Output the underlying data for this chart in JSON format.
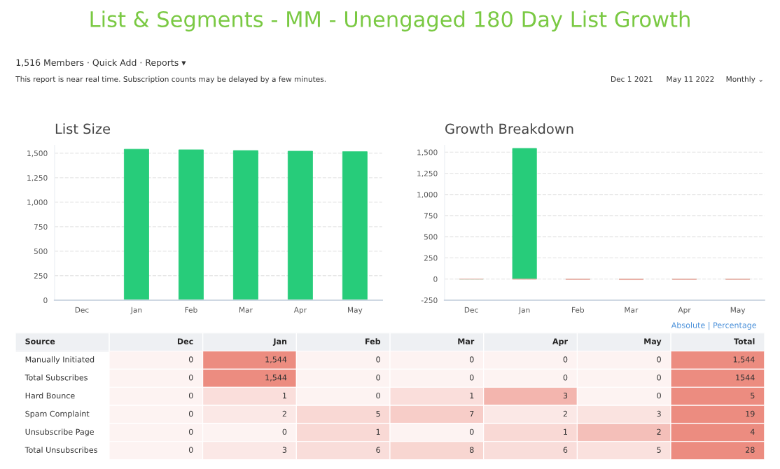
{
  "chart_data": [
    {
      "type": "bar",
      "title": "List Size",
      "categories": [
        "Dec",
        "Jan",
        "Feb",
        "Mar",
        "Apr",
        "May"
      ],
      "values": [
        0,
        1541,
        1535,
        1527,
        1521,
        1516
      ],
      "color": "#27cc7a",
      "ylim": [
        0,
        1580
      ],
      "yticks": [
        0,
        250,
        500,
        750,
        {
          "value": 1000,
          "label": "1,000"
        },
        {
          "value": 1250,
          "label": "1,250"
        },
        {
          "value": 1500,
          "label": "1,500"
        }
      ],
      "grid": "y",
      "annotations": [
        "List & Segments - MM - Unengaged 180 Day List Growth",
        "1,516 Members · Quick Add · Reports ▾",
        "This report is near real time. Subscription counts may be delayed by a few minutes.",
        "Dec 1 2021",
        "May 11 2022",
        "Monthly ⌄"
      ]
    },
    {
      "type": "bar",
      "title": "Growth Breakdown",
      "categories": [
        "Dec",
        "Jan",
        "Feb",
        "Mar",
        "Apr",
        "May"
      ],
      "stacked": true,
      "series": [
        {
          "color": "#27cc7a",
          "values": [
            0,
            1544,
            0,
            0,
            0,
            0
          ]
        },
        {
          "color": "#f2a9a3",
          "values": [
            0,
            -3,
            -6,
            -8,
            -6,
            -5
          ]
        }
      ],
      "ylim": [
        -250,
        1580
      ],
      "yticks": [
        -250,
        0,
        250,
        500,
        750,
        {
          "value": 1000,
          "label": "1,000"
        },
        {
          "value": 1250,
          "label": "1,250"
        },
        {
          "value": 1500,
          "label": "1,500"
        }
      ],
      "grid": "y"
    },
    {
      "type": "heatmap",
      "ylabel": "Source",
      "categories": [
        "Dec",
        "Jan",
        "Feb",
        "Mar",
        "Apr",
        "May",
        "Total"
      ],
      "y_categories": [
        "Manually Initiated",
        "Total Subscribes",
        "Hard Bounce",
        "Spam Complaint",
        "Unsubscribe Page",
        "Total Unsubscribes"
      ],
      "cells": [
        [
          0,
          1544,
          0,
          0,
          0,
          0,
          1544
        ],
        [
          0,
          1544,
          0,
          0,
          0,
          0,
          1544
        ],
        [
          0,
          1,
          0,
          1,
          3,
          0,
          5
        ],
        [
          0,
          2,
          5,
          7,
          2,
          3,
          19
        ],
        [
          0,
          0,
          1,
          0,
          1,
          2,
          4
        ],
        [
          0,
          3,
          6,
          8,
          6,
          5,
          28
        ]
      ],
      "cell_labels": [
        [
          "0",
          "1,544",
          "0",
          "0",
          "0",
          "0",
          "1,544"
        ],
        [
          "0",
          "1,544",
          "0",
          "0",
          "0",
          "0",
          "1544"
        ],
        [
          "0",
          "1",
          "0",
          "1",
          "3",
          "0",
          "5"
        ],
        [
          "0",
          "2",
          "5",
          "7",
          "2",
          "3",
          "19"
        ],
        [
          "0",
          "0",
          "1",
          "0",
          "1",
          "2",
          "4"
        ],
        [
          "0",
          "3",
          "6",
          "8",
          "6",
          "5",
          "28"
        ]
      ],
      "annotations": [
        "Absolute | Percentage"
      ]
    }
  ]
}
